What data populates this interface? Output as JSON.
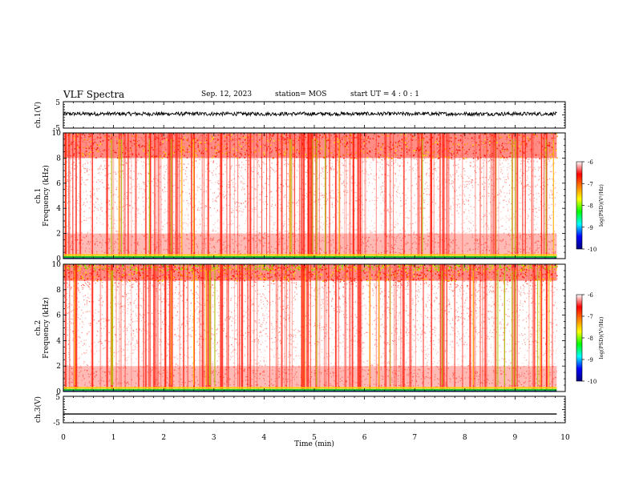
{
  "header": {
    "title": "VLF Spectra",
    "date": "Sep. 12, 2023",
    "station": "station= MOS",
    "start_ut": "start  UT =   4 : 0  : 1"
  },
  "chart_data": [
    {
      "id": "ch1-waveform",
      "type": "line",
      "ylabel": "ch.1(V)",
      "ylim": [
        -5,
        5
      ],
      "ytick_labels": [
        "-5",
        "5"
      ],
      "x_range_min": [
        0,
        9.83
      ],
      "trace": "noisy waveform near +0.5 V",
      "color": "#000000"
    },
    {
      "id": "ch1-spectrogram",
      "type": "heatmap",
      "ylabel": "ch.1\nFrequency  (kHz)",
      "ylim": [
        0,
        10
      ],
      "ytick_labels": [
        "0",
        "2",
        "4",
        "6",
        "8",
        "10"
      ],
      "x_range_min": [
        0,
        9.83
      ],
      "colorbar": {
        "label": "log(PSD)(V²/Hz)",
        "range": [
          -10,
          -6
        ],
        "tick_labels": [
          "-6",
          "-7",
          "-8",
          "-9",
          "-10"
        ],
        "colors": [
          "#00007f",
          "#0000ff",
          "#00ffff",
          "#00ff00",
          "#ffff00",
          "#ff7f00",
          "#ff0000",
          "#ffffff"
        ]
      }
    },
    {
      "id": "ch2-spectrogram",
      "type": "heatmap",
      "ylabel": "ch.2\nFrequency  (kHz)",
      "ylim": [
        0,
        10
      ],
      "ytick_labels": [
        "0",
        "2",
        "4",
        "6",
        "8",
        "10"
      ],
      "x_range_min": [
        0,
        9.83
      ],
      "colorbar": {
        "label": "log(PSD)(V²/Hz)",
        "range": [
          -10,
          -6
        ],
        "tick_labels": [
          "-6",
          "-7",
          "-8",
          "-9",
          "-10"
        ],
        "colors": [
          "#00007f",
          "#0000ff",
          "#00ffff",
          "#00ff00",
          "#ffff00",
          "#ff7f00",
          "#ff0000",
          "#ffffff"
        ]
      }
    },
    {
      "id": "ch3-waveform",
      "type": "line",
      "ylabel": "ch.3(V)",
      "ylim": [
        -5,
        5
      ],
      "ytick_labels": [
        "-5",
        "5"
      ],
      "x_range_min": [
        0,
        9.83
      ],
      "trace": "flat line near -1.5 V",
      "color": "#000000"
    }
  ],
  "xaxis": {
    "label": "Time  (min)",
    "xlim": [
      0,
      10
    ],
    "tick_labels": [
      "0",
      "1",
      "2",
      "3",
      "4",
      "5",
      "6",
      "7",
      "8",
      "9",
      "10"
    ]
  }
}
